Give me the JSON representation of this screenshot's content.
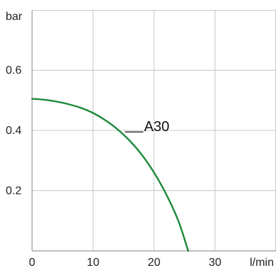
{
  "chart_data": {
    "type": "line",
    "title": "",
    "xlabel": "l/min",
    "ylabel": "bar",
    "xlim": [
      0,
      40
    ],
    "ylim": [
      0,
      0.8
    ],
    "x_ticks": [
      0,
      10,
      20,
      30
    ],
    "y_ticks": [
      0.2,
      0.4,
      0.6
    ],
    "x_tick_labels": [
      "0",
      "10",
      "20",
      "30"
    ],
    "y_tick_labels": [
      "0.2",
      "0.4",
      "0.6"
    ],
    "grid": true,
    "series": [
      {
        "name": "A30",
        "color": "#1e8a3a",
        "x": [
          0,
          2,
          4,
          6,
          8,
          10,
          12,
          14,
          16,
          18,
          20,
          22,
          24,
          25.6
        ],
        "y": [
          0.505,
          0.502,
          0.496,
          0.487,
          0.475,
          0.458,
          0.434,
          0.404,
          0.366,
          0.319,
          0.26,
          0.188,
          0.099,
          0.0
        ]
      }
    ],
    "annotation": {
      "text": "A30",
      "leader": "__",
      "x": 15.2,
      "y": 0.395
    }
  }
}
